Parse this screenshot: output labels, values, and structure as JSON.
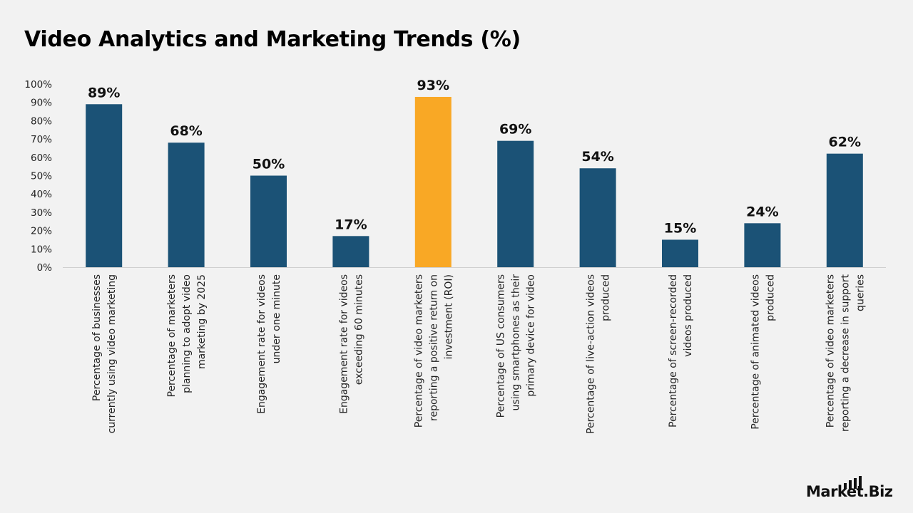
{
  "title": "Video Analytics and Marketing Trends (%)",
  "brand": {
    "name": "Market.Biz",
    "icon": "bar-chart-icon"
  },
  "colors": {
    "default_bar": "#1b5276",
    "highlight_bar": "#f9a825",
    "background": "#f2f2f2"
  },
  "chart_data": {
    "type": "bar",
    "title": "Video Analytics and Marketing Trends (%)",
    "xlabel": "",
    "ylabel": "",
    "ylim": [
      0,
      100
    ],
    "yticks": [
      "0%",
      "10%",
      "20%",
      "30%",
      "40%",
      "50%",
      "60%",
      "70%",
      "80%",
      "90%",
      "100%"
    ],
    "grid": false,
    "legend": "none",
    "categories": [
      "Percentage of businesses currently using video marketing",
      "Percentage of marketers planning to adopt video marketing by 2025",
      "Engagement rate for videos under one minute",
      "Engagement rate for videos exceeding 60 minutes",
      "Percentage of video marketers reporting a positive return on investment (ROI)",
      "Percentage of US consumers using smartphones as their primary device for video",
      "Percentage of live-action videos produced",
      "Percentage of screen-recorded videos produced",
      "Percentage of animated videos produced",
      "Percentage of video marketers reporting a decrease in support queries"
    ],
    "category_lines": [
      [
        "Percentage of businesses",
        "currently using video marketing"
      ],
      [
        "Percentage of marketers",
        "planning to adopt video",
        "marketing by 2025"
      ],
      [
        "Engagement rate for videos",
        "under one minute"
      ],
      [
        "Engagement rate for videos",
        "exceeding 60 minutes"
      ],
      [
        "Percentage of video marketers",
        "reporting a positive return on",
        "investment (ROI)"
      ],
      [
        "Percentage of US consumers",
        "using smartphones as their",
        "primary device for video"
      ],
      [
        "Percentage of live-action videos",
        "produced"
      ],
      [
        "Percentage of screen-recorded",
        "videos produced"
      ],
      [
        "Percentage of animated videos",
        "produced"
      ],
      [
        "Percentage of video marketers",
        "reporting a decrease in support",
        "queries"
      ]
    ],
    "values": [
      89,
      68,
      50,
      17,
      93,
      69,
      54,
      15,
      24,
      62
    ],
    "data_labels": [
      "89%",
      "68%",
      "50%",
      "17%",
      "93%",
      "69%",
      "54%",
      "15%",
      "24%",
      "62%"
    ],
    "highlight_index": 4
  }
}
